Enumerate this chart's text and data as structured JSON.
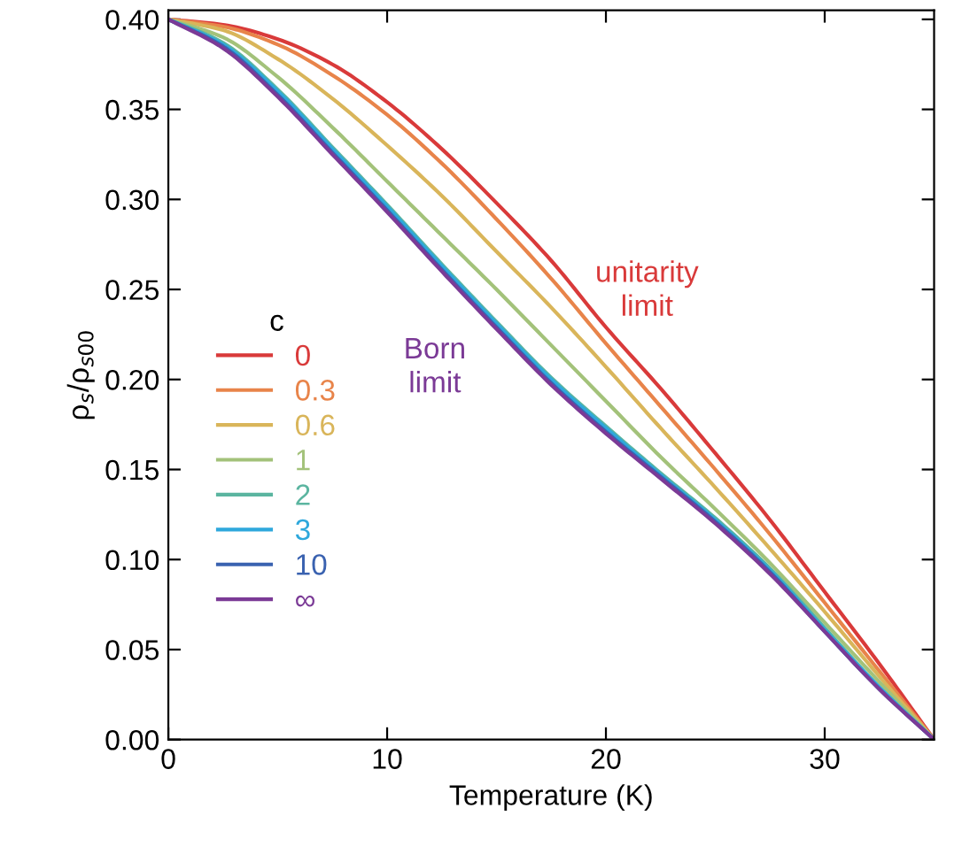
{
  "chart_data": {
    "type": "line",
    "xlabel": "Temperature (K)",
    "ylabel": "ρ$_{s}$/ρ$_{s00}$",
    "legend_title": "c",
    "legend": "left",
    "grid": false,
    "xlim": [
      0,
      35
    ],
    "ylim": [
      0,
      0.405
    ],
    "xticks": [
      0,
      10,
      20,
      30
    ],
    "yticks": [
      {
        "value": 0,
        "label": "0.00"
      },
      0.05,
      {
        "value": 0.1,
        "label": "0.10"
      },
      0.15,
      {
        "value": 0.2,
        "label": "0.20"
      },
      0.25,
      {
        "value": 0.3,
        "label": "0.30"
      },
      0.35,
      {
        "value": 0.4,
        "label": "0.40"
      }
    ],
    "x": [
      0,
      2.5,
      5,
      7.5,
      10,
      12.5,
      15,
      17.5,
      20,
      22.5,
      25,
      27.5,
      30,
      32.5,
      35
    ],
    "series": [
      {
        "name": "0",
        "color": "#d93a3a",
        "values": [
          0.4,
          0.397,
          0.389,
          0.375,
          0.354,
          0.328,
          0.298,
          0.266,
          0.229,
          0.195,
          0.159,
          0.122,
          0.082,
          0.042,
          0
        ]
      },
      {
        "name": "0.3",
        "color": "#e8844a",
        "values": [
          0.4,
          0.396,
          0.386,
          0.369,
          0.347,
          0.32,
          0.289,
          0.256,
          0.22,
          0.185,
          0.15,
          0.114,
          0.076,
          0.038,
          0
        ]
      },
      {
        "name": "0.6",
        "color": "#d9b55a",
        "values": [
          0.4,
          0.394,
          0.378,
          0.356,
          0.33,
          0.302,
          0.271,
          0.24,
          0.207,
          0.173,
          0.14,
          0.106,
          0.071,
          0.035,
          0
        ]
      },
      {
        "name": "1",
        "color": "#a3c27a",
        "values": [
          0.4,
          0.39,
          0.368,
          0.34,
          0.31,
          0.28,
          0.25,
          0.219,
          0.188,
          0.157,
          0.128,
          0.098,
          0.065,
          0.032,
          0
        ]
      },
      {
        "name": "2",
        "color": "#5bb5a0",
        "values": [
          0.4,
          0.387,
          0.361,
          0.329,
          0.297,
          0.264,
          0.232,
          0.201,
          0.174,
          0.148,
          0.123,
          0.095,
          0.062,
          0.029,
          0
        ]
      },
      {
        "name": "3",
        "color": "#2ea8dc",
        "values": [
          0.4,
          0.386,
          0.36,
          0.328,
          0.296,
          0.263,
          0.231,
          0.2,
          0.173,
          0.147,
          0.122,
          0.094,
          0.061,
          0.029,
          0
        ]
      },
      {
        "name": "10",
        "color": "#3a62b0",
        "values": [
          0.4,
          0.385,
          0.358,
          0.326,
          0.294,
          0.261,
          0.229,
          0.198,
          0.171,
          0.146,
          0.121,
          0.093,
          0.06,
          0.028,
          0
        ]
      },
      {
        "name": "∞",
        "color": "#7b3a96",
        "values": [
          0.4,
          0.384,
          0.357,
          0.325,
          0.293,
          0.26,
          0.228,
          0.197,
          0.17,
          0.145,
          0.12,
          0.092,
          0.06,
          0.028,
          0
        ]
      }
    ],
    "annotations": [
      "unitarity\nlimit",
      "Born\nlimit"
    ]
  }
}
